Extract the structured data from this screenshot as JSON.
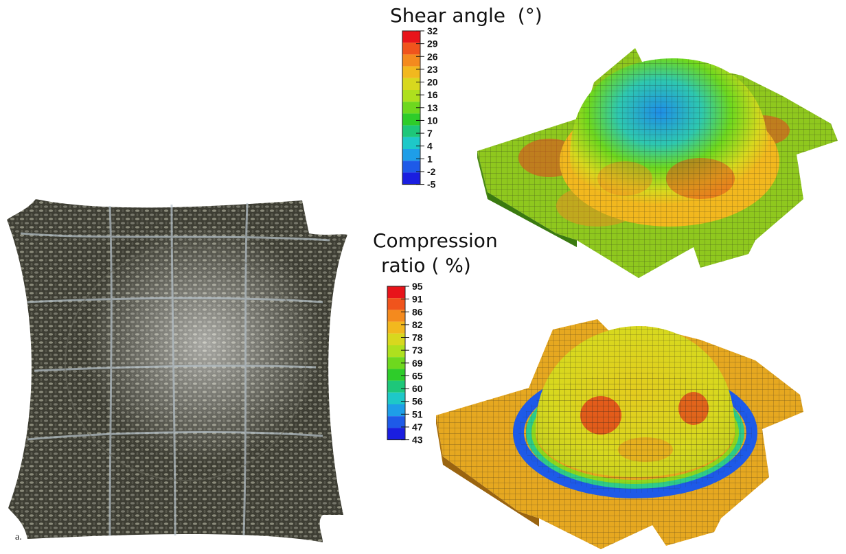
{
  "figure": {
    "panel_label": "a.",
    "shear_legend": {
      "title": "Shear angle  (°)",
      "ticks": [
        "32",
        "29",
        "26",
        "23",
        "20",
        "16",
        "13",
        "10",
        "7",
        "4",
        "1",
        "-2",
        "-5"
      ],
      "colors": [
        "#e8141a",
        "#f0541c",
        "#f48a1e",
        "#f2b81e",
        "#d8d81e",
        "#aee01e",
        "#6ed81e",
        "#2ecc2a",
        "#1ec77a",
        "#1ec8c8",
        "#1e9ee8",
        "#1e5ae8",
        "#1a1ee0"
      ]
    },
    "compression_legend": {
      "title_line1": "Compression",
      "title_line2": "ratio ( %)",
      "ticks": [
        "95",
        "91",
        "86",
        "82",
        "78",
        "73",
        "69",
        "65",
        "60",
        "56",
        "51",
        "47",
        "43"
      ],
      "colors": [
        "#e8141a",
        "#f0541c",
        "#f48a1e",
        "#f2b81e",
        "#d8d81e",
        "#aee01e",
        "#6ed81e",
        "#2ecc2a",
        "#1ec77a",
        "#1ec8c8",
        "#1e9ee8",
        "#1e5ae8",
        "#1a1ee0"
      ]
    },
    "images": {
      "photo": "woven-fabric-photo",
      "sim_shear": "shear-angle-simulation",
      "sim_compression": "compression-ratio-simulation"
    }
  }
}
